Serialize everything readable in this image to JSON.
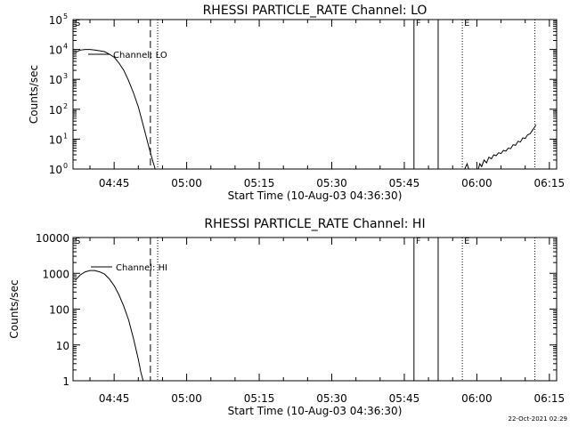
{
  "footer": {
    "timestamp": "22-Oct-2021 02:29"
  },
  "chart_data": [
    {
      "type": "line",
      "title": "RHESSI PARTICLE_RATE Channel: LO",
      "xlabel": "Start Time (10-Aug-03 04:36:30)",
      "ylabel": "Counts/sec",
      "x_unit": "minutes",
      "xlim": [
        36.5,
        136.5
      ],
      "ylim": [
        1,
        100000
      ],
      "yscale": "log",
      "x_ticks": [
        {
          "x": 45,
          "label": "04:45"
        },
        {
          "x": 60,
          "label": "05:00"
        },
        {
          "x": 75,
          "label": "05:15"
        },
        {
          "x": 90,
          "label": "05:30"
        },
        {
          "x": 105,
          "label": "05:45"
        },
        {
          "x": 120,
          "label": "06:00"
        },
        {
          "x": 135,
          "label": "06:15"
        }
      ],
      "y_ticks": [
        {
          "y": 1,
          "base": "10",
          "exp": "0"
        },
        {
          "y": 10,
          "base": "10",
          "exp": "1"
        },
        {
          "y": 100,
          "base": "10",
          "exp": "2"
        },
        {
          "y": 1000,
          "base": "10",
          "exp": "3"
        },
        {
          "y": 10000,
          "base": "10",
          "exp": "4"
        },
        {
          "y": 100000,
          "base": "10",
          "exp": "5"
        }
      ],
      "legend": {
        "label": "Channel: LO"
      },
      "markers": [
        {
          "x": 36.5,
          "label": "S",
          "style": "none"
        },
        {
          "x": 52.5,
          "label": "",
          "style": "dashed"
        },
        {
          "x": 54.0,
          "label": "",
          "style": "dotted"
        },
        {
          "x": 107.0,
          "label": "F",
          "style": "solid"
        },
        {
          "x": 112.0,
          "label": "",
          "style": "solid"
        },
        {
          "x": 117.0,
          "label": "E",
          "style": "dotted"
        },
        {
          "x": 132.0,
          "label": "",
          "style": "dotted"
        }
      ],
      "series": [
        {
          "segments": [
            [
              [
                37,
                8000
              ],
              [
                38,
                9500
              ],
              [
                39,
                10000
              ],
              [
                40,
                10000
              ],
              [
                41,
                9500
              ],
              [
                42,
                9000
              ],
              [
                43,
                8500
              ],
              [
                44,
                7000
              ],
              [
                45,
                5500
              ],
              [
                46,
                3500
              ],
              [
                47,
                2000
              ],
              [
                48,
                900
              ],
              [
                49,
                350
              ],
              [
                50,
                120
              ],
              [
                51,
                30
              ],
              [
                52,
                7
              ],
              [
                53,
                1.8
              ],
              [
                53.5,
                1
              ]
            ],
            [
              [
                117.5,
                1
              ],
              [
                118,
                1.5
              ],
              [
                118.3,
                1
              ]
            ],
            [
              [
                120.3,
                1
              ],
              [
                120.6,
                1.5
              ],
              [
                121,
                1.2
              ],
              [
                121.5,
                2
              ],
              [
                122,
                1.6
              ],
              [
                122.5,
                2.5
              ],
              [
                123,
                2.2
              ],
              [
                123.5,
                3
              ],
              [
                124,
                2.8
              ],
              [
                124.5,
                3.5
              ],
              [
                125,
                3.3
              ],
              [
                125.5,
                4.2
              ],
              [
                126,
                4
              ],
              [
                126.5,
                5
              ],
              [
                127,
                4.8
              ],
              [
                127.5,
                6.5
              ],
              [
                128,
                6.2
              ],
              [
                128.5,
                8.5
              ],
              [
                129,
                8
              ],
              [
                129.5,
                11
              ],
              [
                130,
                10.5
              ],
              [
                130.5,
                14
              ],
              [
                131,
                15
              ],
              [
                131.5,
                20
              ],
              [
                132,
                26
              ],
              [
                132.2,
                30
              ]
            ]
          ]
        }
      ]
    },
    {
      "type": "line",
      "title": "RHESSI PARTICLE_RATE Channel: HI",
      "xlabel": "Start Time (10-Aug-03 04:36:30)",
      "ylabel": "Counts/sec",
      "x_unit": "minutes",
      "xlim": [
        36.5,
        136.5
      ],
      "ylim": [
        1,
        10000
      ],
      "yscale": "log",
      "x_ticks": [
        {
          "x": 45,
          "label": "04:45"
        },
        {
          "x": 60,
          "label": "05:00"
        },
        {
          "x": 75,
          "label": "05:15"
        },
        {
          "x": 90,
          "label": "05:30"
        },
        {
          "x": 105,
          "label": "05:45"
        },
        {
          "x": 120,
          "label": "06:00"
        },
        {
          "x": 135,
          "label": "06:15"
        }
      ],
      "y_ticks": [
        {
          "y": 1,
          "label": "1"
        },
        {
          "y": 10,
          "label": "10"
        },
        {
          "y": 100,
          "label": "100"
        },
        {
          "y": 1000,
          "label": "1000"
        },
        {
          "y": 10000,
          "label": "10000"
        }
      ],
      "legend": {
        "label": "Channel: HI"
      },
      "markers": [
        {
          "x": 36.5,
          "label": "S",
          "style": "none"
        },
        {
          "x": 52.5,
          "label": "",
          "style": "dashed"
        },
        {
          "x": 54.0,
          "label": "",
          "style": "dotted"
        },
        {
          "x": 107.0,
          "label": "F",
          "style": "solid"
        },
        {
          "x": 112.0,
          "label": "",
          "style": "solid"
        },
        {
          "x": 117.0,
          "label": "E",
          "style": "dotted"
        },
        {
          "x": 132.0,
          "label": "",
          "style": "dotted"
        }
      ],
      "series": [
        {
          "segments": [
            [
              [
                37,
                650
              ],
              [
                38,
                900
              ],
              [
                39,
                1100
              ],
              [
                40,
                1200
              ],
              [
                41,
                1200
              ],
              [
                42,
                1100
              ],
              [
                43,
                950
              ],
              [
                44,
                700
              ],
              [
                45,
                450
              ],
              [
                46,
                250
              ],
              [
                47,
                120
              ],
              [
                48,
                50
              ],
              [
                49,
                15
              ],
              [
                50,
                4
              ],
              [
                50.5,
                1.8
              ],
              [
                51,
                1
              ]
            ]
          ]
        }
      ]
    }
  ]
}
